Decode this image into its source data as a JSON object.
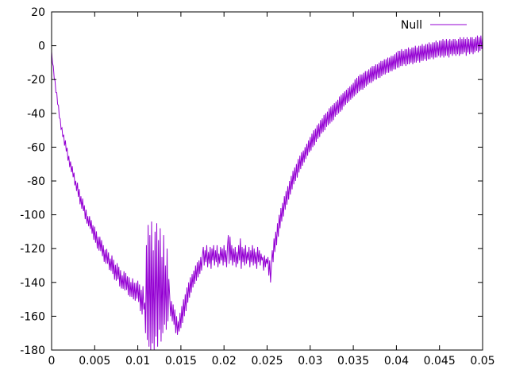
{
  "chart_data": {
    "type": "line",
    "title": "",
    "xlabel": "",
    "ylabel": "",
    "xlim": [
      0,
      0.05
    ],
    "ylim": [
      -180,
      20
    ],
    "grid": false,
    "legend_position": "top-right",
    "background_color": "#ffffff",
    "axis_color": "#000000",
    "x_ticks": [
      0,
      0.005,
      0.01,
      0.015,
      0.02,
      0.025,
      0.03,
      0.035,
      0.04,
      0.045,
      0.05
    ],
    "x_tick_labels": [
      "0",
      "0.005",
      "0.01",
      "0.015",
      "0.02",
      "0.025",
      "0.03",
      "0.035",
      "0.04",
      "0.045",
      "0.05"
    ],
    "y_ticks": [
      20,
      0,
      -20,
      -40,
      -60,
      -80,
      -100,
      -120,
      -140,
      -160,
      -180
    ],
    "y_tick_labels": [
      "20",
      "0",
      "-20",
      "-40",
      "-60",
      "-80",
      "-100",
      "-120",
      "-140",
      "-160",
      "-180"
    ],
    "series": [
      {
        "name": "Null",
        "color": "#9400d3",
        "x_start": 0,
        "x_step": 0.0001,
        "values": [
          -3.5,
          -10.3,
          -12.1,
          -19.1,
          -20.9,
          -27.7,
          -27.8,
          -34.6,
          -35.4,
          -42.6,
          -43.3,
          -49.4,
          -48.6,
          -54,
          -52.6,
          -59.1,
          -56,
          -62.5,
          -60.4,
          -68,
          -65.2,
          -71.8,
          -68.5,
          -74.8,
          -71.2,
          -77.8,
          -75.1,
          -82.6,
          -79.9,
          -85.9,
          -81,
          -89.4,
          -84.8,
          -93.8,
          -89,
          -96.4,
          -90.4,
          -97.8,
          -94.4,
          -102.6,
          -97,
          -105.2,
          -100.8,
          -106.8,
          -100.8,
          -108.4,
          -103.2,
          -111.2,
          -106.2,
          -114.8,
          -107,
          -116.5,
          -109.8,
          -120,
          -113,
          -121.2,
          -113,
          -121.5,
          -115,
          -124.5,
          -118,
          -127.8,
          -120.6,
          -128.9,
          -120.2,
          -129,
          -122.3,
          -132.6,
          -125.9,
          -133.2,
          -124,
          -135,
          -126.6,
          -138.4,
          -129.6,
          -139,
          -128.6,
          -138.2,
          -130.8,
          -142.4,
          -132.8,
          -143.6,
          -135.8,
          -143.8,
          -133.4,
          -144.8,
          -134.4,
          -144.4,
          -136.4,
          -147.6,
          -137,
          -148.4,
          -139.8,
          -148.6,
          -137.6,
          -150,
          -140.2,
          -150.8,
          -140.2,
          -149.6,
          -139,
          -151.6,
          -141.2,
          -157,
          -144.4,
          -159,
          -142.2,
          -156,
          -152,
          -170,
          -118,
          -174,
          -106,
          -178,
          -112,
          -180,
          -104,
          -176,
          -121,
          -180,
          -110,
          -172,
          -105,
          -178,
          -115,
          -168,
          -108,
          -175,
          -125,
          -170,
          -112,
          -165,
          -130,
          -168,
          -120,
          -163,
          -138,
          -148,
          -160,
          -151,
          -163,
          -153,
          -165,
          -156,
          -170,
          -160,
          -171,
          -163,
          -169,
          -158,
          -167,
          -154,
          -164,
          -150,
          -160,
          -147,
          -157,
          -143,
          -152,
          -140,
          -149,
          -137,
          -146,
          -135,
          -143,
          -133,
          -141,
          -130,
          -139,
          -128,
          -137,
          -127,
          -135,
          -125,
          -133,
          -124,
          -119,
          -130,
          -121,
          -128,
          -118,
          -131,
          -122,
          -129,
          -119,
          -132,
          -120,
          -127,
          -118,
          -130,
          -121,
          -128,
          -118,
          -131,
          -123,
          -129,
          -119,
          -127,
          -120,
          -130,
          -118,
          -128,
          -121,
          -131,
          -119,
          -112,
          -129,
          -113,
          -127,
          -118,
          -130,
          -120,
          -128,
          -119,
          -131,
          -122,
          -129,
          -118,
          -127,
          -114,
          -132,
          -119,
          -128,
          -120,
          -130,
          -118,
          -129,
          -122,
          -127,
          -119,
          -131,
          -121,
          -128,
          -118,
          -130,
          -120,
          -129,
          -122,
          -132,
          -119,
          -128,
          -121,
          -130,
          -123,
          -127,
          -125,
          -133,
          -124,
          -131,
          -126,
          -129,
          -125,
          -136,
          -127,
          -140,
          -130,
          -121,
          -128,
          -114,
          -122,
          -110,
          -118,
          -105,
          -113,
          -100,
          -108,
          -96,
          -104,
          -93,
          -101,
          -89,
          -97,
          -86,
          -94,
          -83,
          -91,
          -80,
          -88,
          -77,
          -85,
          -74,
          -82,
          -72,
          -80,
          -70,
          -78,
          -67,
          -75,
          -65,
          -73,
          -63,
          -71,
          -62,
          -69,
          -60,
          -67,
          -58,
          -65,
          -56,
          -63,
          -54,
          -62,
          -52,
          -60,
          -50,
          -59,
          -49,
          -57,
          -47,
          -55,
          -46,
          -54,
          -44,
          -52,
          -43,
          -51,
          -41,
          -50,
          -40,
          -48,
          -39,
          -47,
          -37,
          -46,
          -36,
          -45,
          -35,
          -44,
          -34,
          -42,
          -33,
          -41,
          -32,
          -40,
          -30,
          -39,
          -29,
          -38,
          -28,
          -36,
          -27,
          -35,
          -26,
          -34,
          -25,
          -33,
          -24,
          -32,
          -23,
          -31,
          -22,
          -30,
          -20,
          -29,
          -19,
          -28,
          -18,
          -27,
          -17,
          -26,
          -17,
          -26,
          -16,
          -25,
          -15,
          -24,
          -15,
          -23,
          -14,
          -22,
          -13,
          -22,
          -12,
          -21,
          -12,
          -20,
          -11,
          -20,
          -11,
          -19,
          -10,
          -19,
          -9,
          -18,
          -9,
          -17,
          -8,
          -17,
          -8,
          -16,
          -7,
          -16,
          -7,
          -15,
          -6,
          -15,
          -6,
          -14,
          -5,
          -14,
          -4,
          -13,
          -3,
          -13,
          -3,
          -12,
          -2,
          -12,
          -3,
          -11,
          -2,
          -12,
          -2,
          -11,
          -1,
          -11,
          -2,
          -10,
          -1,
          -11,
          -1,
          -10,
          0,
          -10,
          -1,
          -9,
          0,
          -10,
          0,
          -9,
          1,
          -9,
          0,
          -8,
          1,
          -9,
          1,
          -8,
          2,
          -8,
          1,
          -7,
          2,
          -8,
          2,
          -7,
          3,
          -7,
          2,
          -6,
          3,
          -7,
          3,
          -6,
          4,
          -7,
          3,
          -6,
          4,
          -6,
          3,
          -7,
          4,
          -5,
          3,
          -6,
          4,
          -5,
          4,
          -6,
          3,
          -5,
          4,
          -6,
          5,
          -5,
          4,
          -5,
          5,
          -4,
          4,
          -6,
          5,
          -4,
          4,
          -5,
          5,
          -4,
          5,
          -5,
          4,
          -4,
          5,
          -3,
          6,
          -4,
          5,
          -3,
          6,
          -2,
          5
        ]
      }
    ]
  }
}
